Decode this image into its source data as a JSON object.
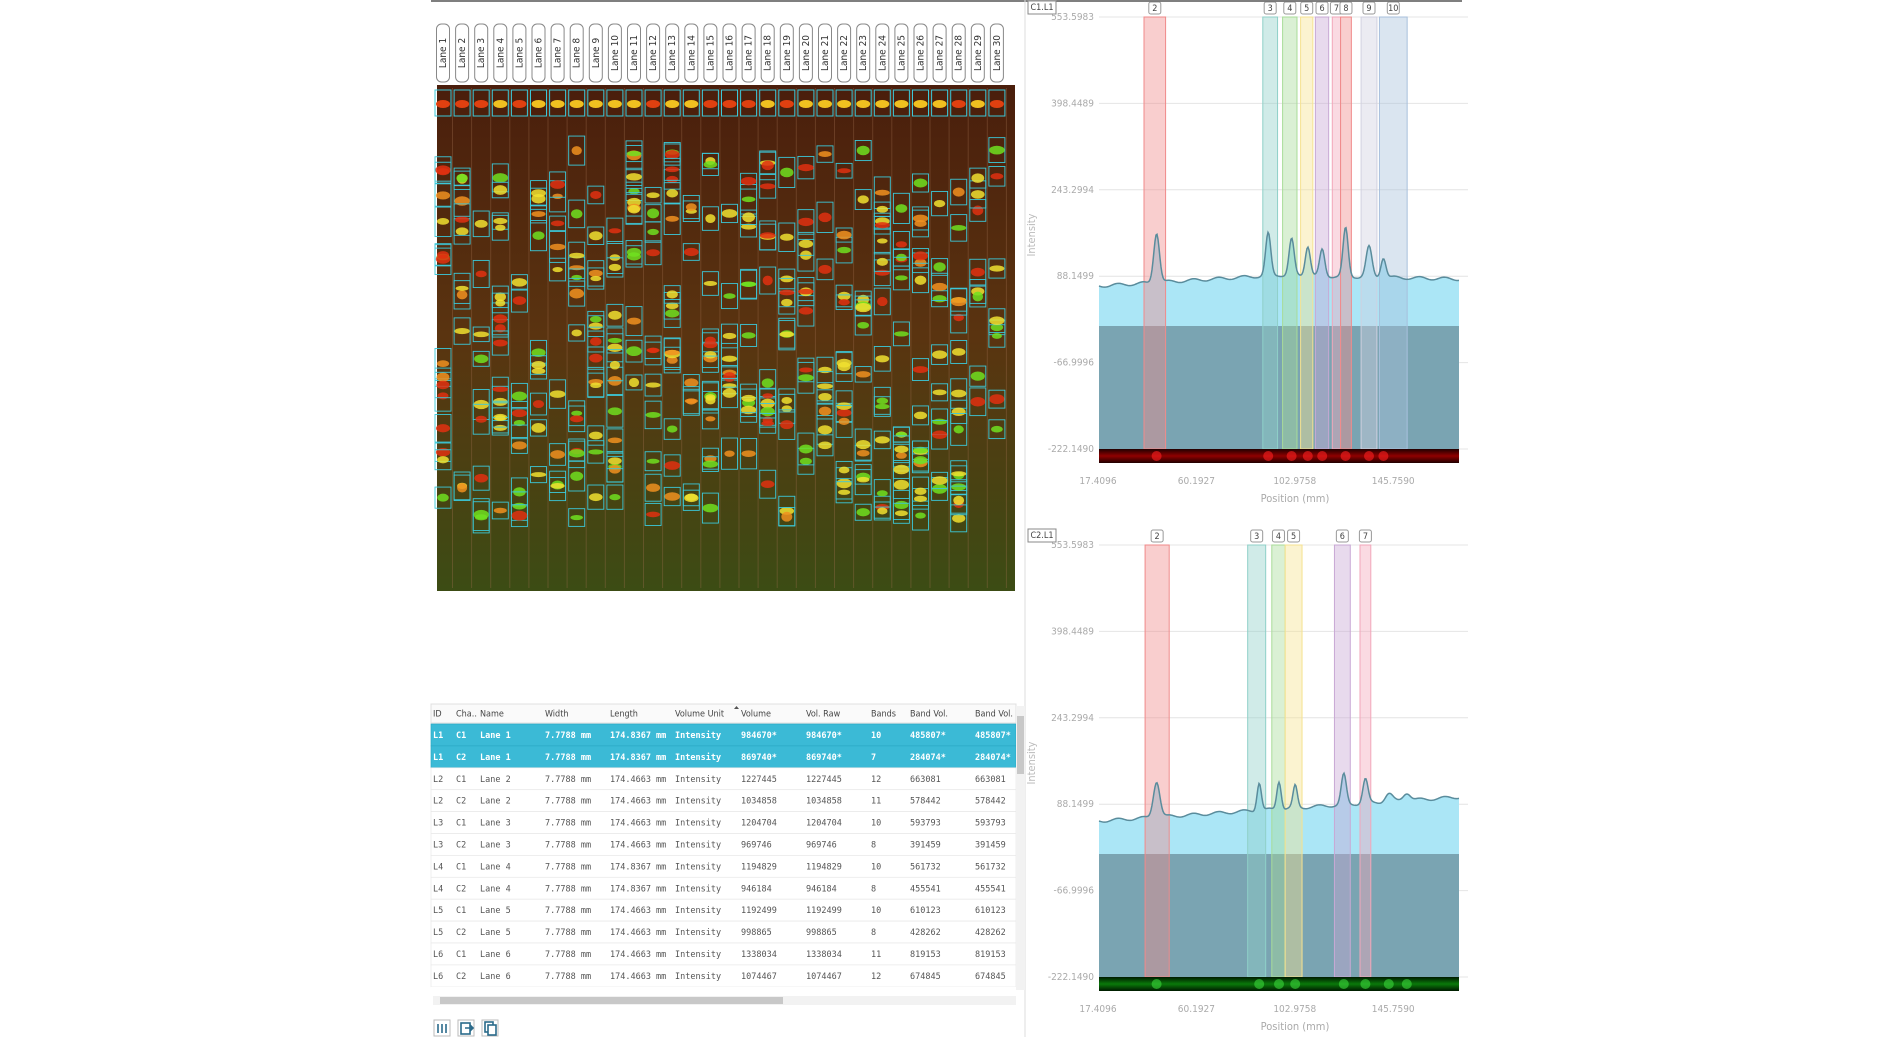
{
  "lanes": [
    "Lane 1",
    "Lane 2",
    "Lane 3",
    "Lane 4",
    "Lane 5",
    "Lane 6",
    "Lane 7",
    "Lane 8",
    "Lane 9",
    "Lane 10",
    "Lane 11",
    "Lane 12",
    "Lane 13",
    "Lane 14",
    "Lane 15",
    "Lane 16",
    "Lane 17",
    "Lane 18",
    "Lane 19",
    "Lane 20",
    "Lane 21",
    "Lane 22",
    "Lane 23",
    "Lane 24",
    "Lane 25",
    "Lane 26",
    "Lane 27",
    "Lane 28",
    "Lane 29",
    "Lane 30"
  ],
  "plots": [
    {
      "tag": "C1.L1",
      "y_ticks": [
        "553.5983",
        "398.4489",
        "243.2994",
        "88.1499",
        "-66.9996",
        "-222.1490"
      ],
      "x_ticks": [
        "17.4096",
        "60.1927",
        "102.9758",
        "145.7590"
      ],
      "y_label": "Intensity",
      "x_label": "Position (mm)",
      "bands": [
        "2",
        "3",
        "4",
        "5",
        "6",
        "7",
        "8",
        "9",
        "10"
      ]
    },
    {
      "tag": "C2.L1",
      "y_ticks": [
        "553.5983",
        "398.4489",
        "243.2994",
        "88.1499",
        "-66.9996",
        "-222.1490"
      ],
      "x_ticks": [
        "17.4096",
        "60.1927",
        "102.9758",
        "145.7590"
      ],
      "y_label": "Intensity",
      "x_label": "Position (mm)",
      "bands": [
        "2",
        "3",
        "4",
        "5",
        "6",
        "7"
      ]
    }
  ],
  "table": {
    "headers": [
      "ID",
      "Cha..",
      "Name",
      "Width",
      "Length",
      "Volume Unit",
      "Volume",
      "Vol. Raw",
      "Bands",
      "Band Vol.",
      "Band Vol."
    ],
    "rows": [
      [
        "L1",
        "C1",
        "Lane 1",
        "7.7788 mm",
        "174.8367 mm",
        "Intensity",
        "984670*",
        "984670*",
        "10",
        "485807*",
        "485807*"
      ],
      [
        "L1",
        "C2",
        "Lane 1",
        "7.7788 mm",
        "174.8367 mm",
        "Intensity",
        "869740*",
        "869740*",
        "7",
        "284074*",
        "284074*"
      ],
      [
        "L2",
        "C1",
        "Lane 2",
        "7.7788 mm",
        "174.4663 mm",
        "Intensity",
        "1227445",
        "1227445",
        "12",
        "663081",
        "663081"
      ],
      [
        "L2",
        "C2",
        "Lane 2",
        "7.7788 mm",
        "174.4663 mm",
        "Intensity",
        "1034858",
        "1034858",
        "11",
        "578442",
        "578442"
      ],
      [
        "L3",
        "C1",
        "Lane 3",
        "7.7788 mm",
        "174.4663 mm",
        "Intensity",
        "1204704",
        "1204704",
        "10",
        "593793",
        "593793"
      ],
      [
        "L3",
        "C2",
        "Lane 3",
        "7.7788 mm",
        "174.4663 mm",
        "Intensity",
        "969746",
        "969746",
        "8",
        "391459",
        "391459"
      ],
      [
        "L4",
        "C1",
        "Lane 4",
        "7.7788 mm",
        "174.8367 mm",
        "Intensity",
        "1194829",
        "1194829",
        "10",
        "561732",
        "561732"
      ],
      [
        "L4",
        "C2",
        "Lane 4",
        "7.7788 mm",
        "174.8367 mm",
        "Intensity",
        "946184",
        "946184",
        "8",
        "455541",
        "455541"
      ],
      [
        "L5",
        "C1",
        "Lane 5",
        "7.7788 mm",
        "174.4663 mm",
        "Intensity",
        "1192499",
        "1192499",
        "10",
        "610123",
        "610123"
      ],
      [
        "L5",
        "C2",
        "Lane 5",
        "7.7788 mm",
        "174.4663 mm",
        "Intensity",
        "998865",
        "998865",
        "8",
        "428262",
        "428262"
      ],
      [
        "L6",
        "C1",
        "Lane 6",
        "7.7788 mm",
        "174.4663 mm",
        "Intensity",
        "1338034",
        "1338034",
        "11",
        "819153",
        "819153"
      ],
      [
        "L6",
        "C2",
        "Lane 6",
        "7.7788 mm",
        "174.4663 mm",
        "Intensity",
        "1074467",
        "1074467",
        "12",
        "674845",
        "674845"
      ]
    ]
  }
}
